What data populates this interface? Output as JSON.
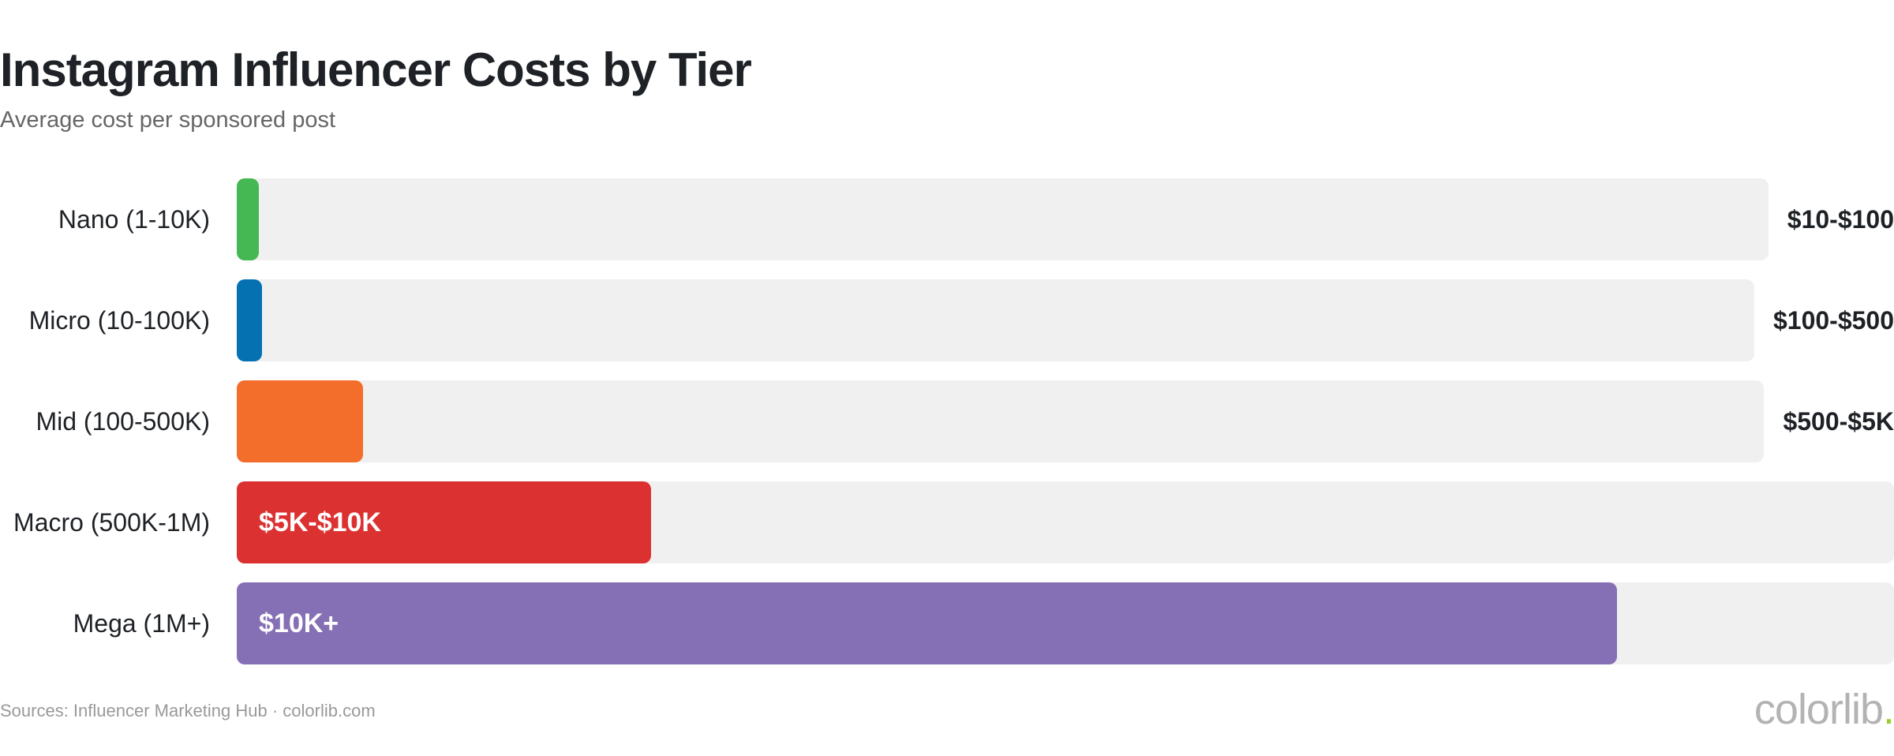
{
  "header": {
    "title": "Instagram Influencer Costs by Tier",
    "subtitle": "Average cost per sponsored post"
  },
  "chart_data": {
    "type": "bar",
    "orientation": "horizontal",
    "title": "Instagram Influencer Costs by Tier",
    "subtitle": "Average cost per sponsored post",
    "categories": [
      "Nano (1-10K)",
      "Micro (10-100K)",
      "Mid (100-500K)",
      "Macro (500K-1M)",
      "Mega (1M+)"
    ],
    "value_labels": [
      "$10-$100",
      "$100-$500",
      "$500-$5K",
      "$5K-$10K",
      "$10K+"
    ],
    "values": [
      0.013,
      0.015,
      0.076,
      0.25,
      0.833
    ],
    "value_scale": "relative share of the full track (0-1)",
    "label_position": [
      "outside",
      "outside",
      "outside",
      "inside",
      "inside"
    ],
    "colors": [
      "#46b853",
      "#0571b0",
      "#f46e2b",
      "#dc3131",
      "#8570b5"
    ],
    "track_color": "#f0f0f0",
    "grid": false,
    "legend": "none"
  },
  "footer": {
    "source": "Sources: Influencer Marketing Hub · colorlib.com",
    "brand": "colorlib",
    "brand_dot": "."
  }
}
